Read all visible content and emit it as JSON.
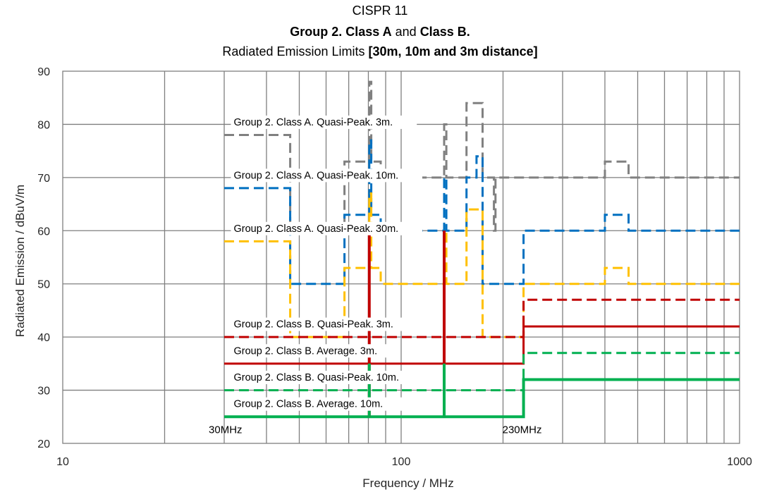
{
  "chart_data": {
    "type": "line",
    "title": {
      "line1": "CISPR 11",
      "line2_part1": "Group 2. Class A",
      "line2_part2": " and ",
      "line2_part3": "Class B.",
      "line3_part1": "Radiated Emission Limits ",
      "line3_part2": "[30m, 10m and 3m distance]"
    },
    "xlabel": "Frequency / MHz",
    "ylabel": "Radiated Emission / dBuV/m",
    "xscale": "log",
    "xlim": [
      10,
      1000
    ],
    "ylim": [
      20,
      90
    ],
    "x_ticks": [
      10,
      100,
      1000
    ],
    "x_tick_labels": [
      "10",
      "100",
      "1000"
    ],
    "y_ticks": [
      20,
      30,
      40,
      50,
      60,
      70,
      80,
      90
    ],
    "grid": true,
    "annotations": [
      {
        "text": "30MHz",
        "x": 30,
        "y": 22.2
      },
      {
        "text": "230MHz",
        "x": 230,
        "y": 22.2
      }
    ],
    "series_labels": [
      {
        "text": "Group 2. Class A. Quasi-Peak. 3m.",
        "x": 32,
        "y": 79.8
      },
      {
        "text": "Group 2. Class A. Quasi-Peak. 10m.",
        "x": 32,
        "y": 69.8
      },
      {
        "text": "Group 2. Class A. Quasi-Peak. 30m.",
        "x": 32,
        "y": 59.8
      },
      {
        "text": "Group 2. Class B. Quasi-Peak. 3m.",
        "x": 32,
        "y": 41.8
      },
      {
        "text": "Group 2. Class B. Average. 3m.",
        "x": 32,
        "y": 36.8
      },
      {
        "text": "Group 2. Class B. Quasi-Peak. 10m.",
        "x": 32,
        "y": 31.8
      },
      {
        "text": "Group 2. Class B. Average. 10m.",
        "x": 32,
        "y": 26.8
      }
    ],
    "series": [
      {
        "color": "#808080",
        "dash": true,
        "width": 3,
        "x": [
          30,
          47,
          47,
          68,
          68,
          80.5,
          80.5,
          81.6,
          81.6,
          87,
          87,
          134,
          134,
          136,
          136,
          156,
          156,
          174,
          174,
          188,
          188,
          190,
          190,
          230,
          230,
          400,
          400,
          470,
          470,
          1000
        ],
        "y": [
          78,
          78,
          60,
          60,
          73,
          73,
          88,
          88,
          73,
          73,
          70,
          70,
          80,
          80,
          70,
          70,
          84,
          84,
          70,
          70,
          60,
          60,
          70,
          70,
          70,
          70,
          73,
          73,
          70,
          70
        ]
      },
      {
        "color": "#0070C0",
        "dash": true,
        "width": 3,
        "x": [
          30,
          47,
          47,
          68,
          68,
          75,
          75,
          80.5,
          80.5,
          81.6,
          81.6,
          87,
          87,
          134,
          134,
          136,
          136,
          156,
          156,
          167,
          167,
          174,
          174,
          188,
          188,
          230,
          230,
          400,
          400,
          470,
          470,
          1000
        ],
        "y": [
          68,
          68,
          50,
          50,
          63,
          63,
          63,
          63,
          77,
          77,
          63,
          63,
          60,
          60,
          70,
          70,
          60,
          60,
          70,
          70,
          74,
          74,
          50,
          50,
          50,
          50,
          60,
          60,
          63,
          63,
          60,
          60
        ]
      },
      {
        "color": "#FFC000",
        "dash": true,
        "width": 3,
        "x": [
          30,
          47,
          47,
          68,
          68,
          75,
          75,
          80.5,
          80.5,
          81.6,
          81.6,
          87,
          87,
          134,
          134,
          136,
          136,
          156,
          156,
          167,
          167,
          174,
          174,
          188,
          188,
          230,
          230,
          400,
          400,
          470,
          470,
          1000
        ],
        "y": [
          58,
          58,
          40,
          40,
          53,
          53,
          53,
          53,
          67,
          67,
          53,
          53,
          50,
          50,
          60,
          60,
          50,
          50,
          64,
          64,
          64,
          64,
          40,
          40,
          40,
          40,
          50,
          50,
          53,
          53,
          50,
          50
        ]
      },
      {
        "color": "#C00000",
        "dash": true,
        "width": 3,
        "x": [
          30,
          230,
          230,
          1000
        ],
        "y": [
          40,
          40,
          47,
          47
        ]
      },
      {
        "color": "#C00000",
        "dash": false,
        "width": 3,
        "x": [
          30,
          230,
          230,
          1000
        ],
        "y": [
          35,
          35,
          42,
          42
        ]
      },
      {
        "color": "#00B050",
        "dash": true,
        "width": 3,
        "x": [
          30,
          230,
          230,
          1000
        ],
        "y": [
          30,
          30,
          37,
          37
        ]
      },
      {
        "color": "#00B050",
        "dash": false,
        "width": 4,
        "x": [
          30,
          230,
          230,
          1000
        ],
        "y": [
          25,
          25,
          32,
          32
        ]
      }
    ],
    "spikes": [
      {
        "x": 80.5,
        "y_from": 25,
        "y_to": 60,
        "color": "#C00000",
        "width": 4
      },
      {
        "x": 134,
        "y_from": 25,
        "y_to": 60,
        "color": "#C00000",
        "width": 4
      },
      {
        "x": 80.5,
        "y_from": 25,
        "y_to": 35,
        "color": "#00B050",
        "width": 4
      },
      {
        "x": 134,
        "y_from": 25,
        "y_to": 35,
        "color": "#00B050",
        "width": 4
      }
    ]
  }
}
